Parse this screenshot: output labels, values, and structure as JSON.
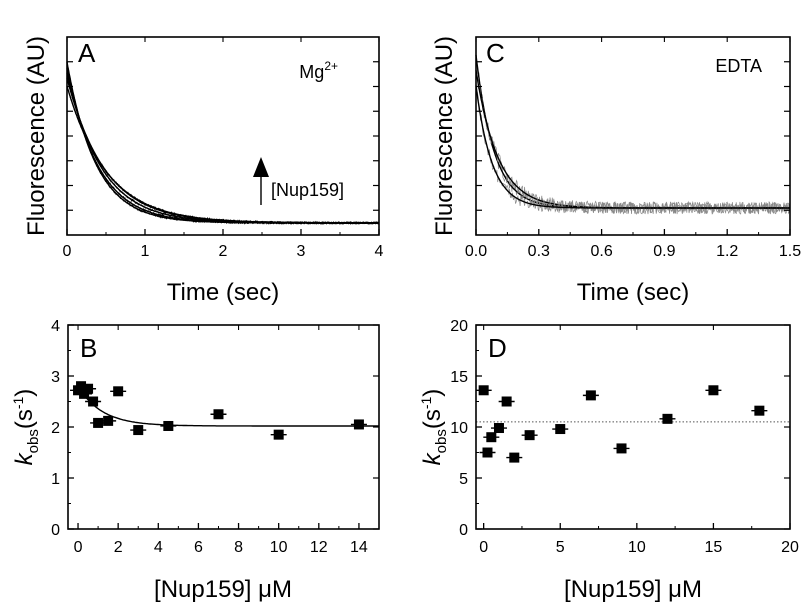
{
  "figure": {
    "colors": {
      "curve": "#000000",
      "noise": "#888888",
      "dotted": "#555555",
      "background": "#ffffff"
    }
  },
  "chart_data": [
    {
      "panel": "A",
      "type": "line",
      "xlabel": "Time (sec)",
      "ylabel": "Fluorescence (AU)",
      "xlim": [
        0,
        4
      ],
      "xticks": [
        "0",
        "1",
        "2",
        "3",
        "4"
      ],
      "yticks_labeled": false,
      "condition_label": {
        "main": "Mg",
        "sup": "2+"
      },
      "arrow_label": "[Nup159]",
      "series": [
        {
          "amplitude": 1.0,
          "rate": 2.7,
          "noise": 0.006
        },
        {
          "amplitude": 0.96,
          "rate": 2.5,
          "noise": 0.006
        },
        {
          "amplitude": 0.93,
          "rate": 2.25,
          "noise": 0.006
        },
        {
          "amplitude": 0.9,
          "rate": 2.05,
          "noise": 0.006
        },
        {
          "amplitude": 0.85,
          "rate": 1.95,
          "noise": 0.006
        }
      ],
      "baseline": 0.0,
      "grid": false
    },
    {
      "panel": "C",
      "type": "line",
      "xlabel": "Time (sec)",
      "ylabel": "Fluorescence (AU)",
      "xlim": [
        0,
        1.5
      ],
      "xticks": [
        "0.0",
        "0.3",
        "0.6",
        "0.9",
        "1.2",
        "1.5"
      ],
      "yticks_labeled": false,
      "condition_label": {
        "main": "EDTA",
        "sup": ""
      },
      "series": [
        {
          "amplitude": 1.0,
          "rate": 11.5,
          "noise": 0.04
        },
        {
          "amplitude": 0.9,
          "rate": 9.5,
          "noise": 0.04
        },
        {
          "amplitude": 0.8,
          "rate": 13.0,
          "noise": 0.04
        }
      ],
      "baseline": 0.0,
      "grid": false
    },
    {
      "panel": "B",
      "type": "scatter",
      "xlabel": "[Nup159] μM",
      "ylabel_parts": {
        "k": "k",
        "k_sub": "obs",
        "unit_open": "(s",
        "unit_sup": "-1",
        "unit_close": ")"
      },
      "xlim": [
        -0.5,
        15
      ],
      "ylim": [
        0,
        4
      ],
      "xticks": [
        0,
        2,
        4,
        6,
        8,
        10,
        12,
        14
      ],
      "yticks": [
        0,
        1,
        2,
        3,
        4
      ],
      "points": [
        {
          "x": 0.0,
          "y": 2.72
        },
        {
          "x": 0.15,
          "y": 2.8
        },
        {
          "x": 0.3,
          "y": 2.65
        },
        {
          "x": 0.5,
          "y": 2.75
        },
        {
          "x": 0.75,
          "y": 2.5
        },
        {
          "x": 1.0,
          "y": 2.08
        },
        {
          "x": 1.5,
          "y": 2.12
        },
        {
          "x": 2.0,
          "y": 2.7
        },
        {
          "x": 3.0,
          "y": 1.94
        },
        {
          "x": 4.5,
          "y": 2.02
        },
        {
          "x": 7.0,
          "y": 2.25
        },
        {
          "x": 10.0,
          "y": 1.85
        },
        {
          "x": 14.0,
          "y": 2.05
        }
      ],
      "fit": {
        "kind": "exp_decay",
        "y0": 2.02,
        "a": 0.78,
        "x0": 0.0,
        "tau": 1.2,
        "x_from": 0.0,
        "x_to": 15.0
      },
      "grid": false
    },
    {
      "panel": "D",
      "type": "scatter",
      "xlabel": "[Nup159] μM",
      "ylabel_parts": {
        "k": "k",
        "k_sub": "obs",
        "unit_open": "(s",
        "unit_sup": "-1",
        "unit_close": ")"
      },
      "xlim": [
        -0.5,
        20
      ],
      "ylim": [
        0,
        20
      ],
      "xticks": [
        0,
        5,
        10,
        15,
        20
      ],
      "yticks": [
        0,
        5,
        10,
        15,
        20
      ],
      "points": [
        {
          "x": 0.0,
          "y": 13.6
        },
        {
          "x": 0.25,
          "y": 7.5
        },
        {
          "x": 0.5,
          "y": 9.0
        },
        {
          "x": 1.0,
          "y": 9.9
        },
        {
          "x": 1.5,
          "y": 12.5
        },
        {
          "x": 2.0,
          "y": 7.0
        },
        {
          "x": 3.0,
          "y": 9.2
        },
        {
          "x": 5.0,
          "y": 9.8
        },
        {
          "x": 7.0,
          "y": 13.1
        },
        {
          "x": 9.0,
          "y": 7.9
        },
        {
          "x": 12.0,
          "y": 10.8
        },
        {
          "x": 15.0,
          "y": 13.6
        },
        {
          "x": 18.0,
          "y": 11.6
        }
      ],
      "mean_line": 10.5,
      "grid": false
    }
  ]
}
